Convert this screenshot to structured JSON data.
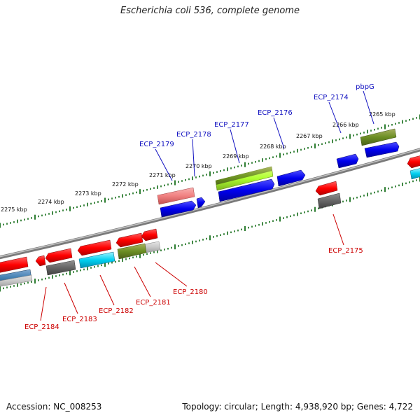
{
  "title": "Escherichia coli 536, complete genome",
  "footer": {
    "accession": "Accession: NC_008253",
    "summary": "Topology: circular; Length: 4,938,920 bp; Genes: 4,722"
  },
  "colors": {
    "backbone": "#8a8a8a",
    "tick": "#2e7d32",
    "forward_label": "#1010c0",
    "reverse_label": "#cc0000"
  },
  "scale_kbp": [
    "2265 kbp",
    "2266 kbp",
    "2267 kbp",
    "2268 kbp",
    "2269 kbp",
    "2270 kbp",
    "2271 kbp",
    "2272 kbp",
    "2273 kbp",
    "2274 kbp",
    "2275 kbp"
  ],
  "forward_labels": [
    "pbpG",
    "ECP_2174",
    "ECP_2176",
    "ECP_2177",
    "ECP_2178",
    "ECP_2179"
  ],
  "reverse_labels": [
    "ECP_2175",
    "ECP_2180",
    "ECP_2181",
    "ECP_2182",
    "ECP_2183",
    "ECP_2184"
  ]
}
